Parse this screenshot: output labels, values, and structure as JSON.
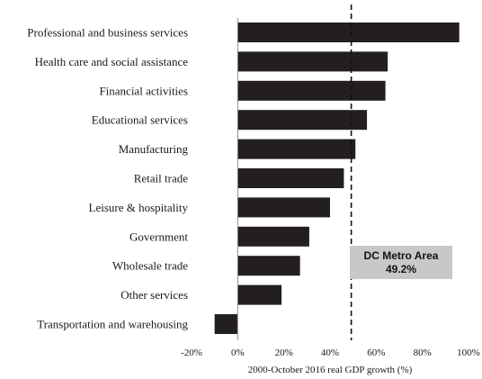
{
  "chart_data": {
    "type": "bar",
    "orientation": "horizontal",
    "categories": [
      "Professional and business services",
      "Health care and social assistance",
      "Financial activities",
      "Educational services",
      "Manufacturing",
      "Retail trade",
      "Leisure & hospitality",
      "Government",
      "Wholesale trade",
      "Other services",
      "Transportation and warehousing"
    ],
    "values": [
      96,
      65,
      64,
      56,
      51,
      46,
      40,
      31,
      27,
      19,
      -10
    ],
    "xlabel": "2000-October 2016 real GDP growth (%)",
    "xlim": [
      -20,
      100
    ],
    "xticks": [
      "-20%",
      "0%",
      "20%",
      "40%",
      "60%",
      "80%",
      "100%"
    ],
    "reference_line": {
      "value": 49.2,
      "style": "dashed",
      "label_line1": "DC Metro Area",
      "label_line2": "49.2%"
    },
    "bar_color": "#231f20",
    "callout_color": "#c8c8c8",
    "grid": false
  }
}
